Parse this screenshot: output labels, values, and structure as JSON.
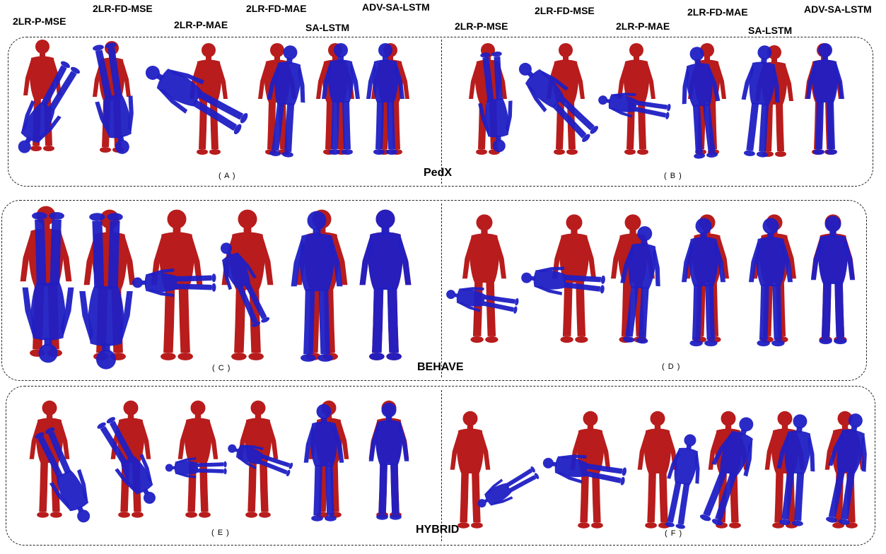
{
  "colors": {
    "target": "#b81c1c",
    "prediction": "#1f1fc4",
    "border": "#222222"
  },
  "method_labels": {
    "m1": "2LR-P-MSE",
    "m2": "2LR-FD-MSE",
    "m3": "2LR-P-MAE",
    "m4": "2LR-FD-MAE",
    "m5": "SA-LSTM",
    "m6": "ADV-SA-LSTM"
  },
  "datasets": {
    "pedx": "PedX",
    "behave": "BEHAVE",
    "hybrid": "HYBRID"
  },
  "subfigures": {
    "a": "( A )",
    "b": "( B )",
    "c": "( C )",
    "d": "( D )",
    "e": "( E )",
    "f": "( F )"
  }
}
